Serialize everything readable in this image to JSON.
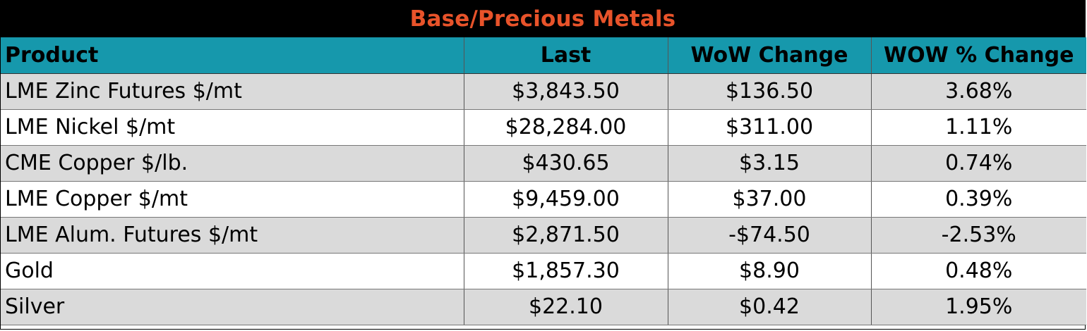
{
  "title": "Base/Precious Metals",
  "colors": {
    "title_bg": "#000000",
    "title_text": "#e8532a",
    "header_bg": "#1698ac",
    "row_alt_bg": "#dadada",
    "row_bg": "#ffffff"
  },
  "columns": [
    "Product",
    "Last",
    "WoW Change",
    "WOW % Change"
  ],
  "rows": [
    [
      "LME Zinc Futures $/mt",
      "$3,843.50",
      "$136.50",
      "3.68%"
    ],
    [
      "LME Nickel $/mt",
      "$28,284.00",
      "$311.00",
      "1.11%"
    ],
    [
      "CME Copper $/lb.",
      "$430.65",
      "$3.15",
      "0.74%"
    ],
    [
      "LME Copper $/mt",
      "$9,459.00",
      "$37.00",
      "0.39%"
    ],
    [
      "LME Alum. Futures $/mt",
      "$2,871.50",
      "-$74.50",
      "-2.53%"
    ],
    [
      "Gold",
      "$1,857.30",
      "$8.90",
      "0.48%"
    ],
    [
      "Silver",
      "$22.10",
      "$0.42",
      "1.95%"
    ]
  ]
}
